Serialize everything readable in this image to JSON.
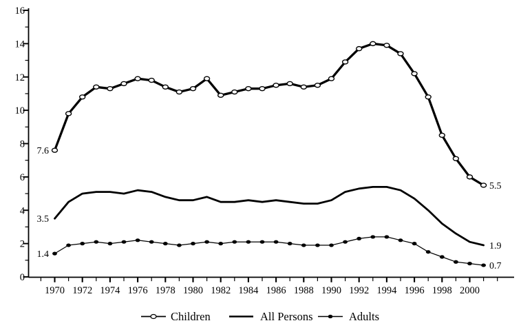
{
  "colors": {
    "ink": "#000000",
    "background": "#ffffff"
  },
  "chart_data": {
    "type": "line",
    "title": "",
    "xlabel": "",
    "ylabel": "",
    "x_years": [
      1970,
      1971,
      1972,
      1973,
      1974,
      1975,
      1976,
      1977,
      1978,
      1979,
      1980,
      1981,
      1982,
      1983,
      1984,
      1985,
      1986,
      1987,
      1988,
      1989,
      1990,
      1991,
      1992,
      1993,
      1994,
      1995,
      1996,
      1997,
      1998,
      1999,
      2000,
      2001
    ],
    "series": [
      {
        "name": "Children",
        "marker": "open-circle",
        "values": [
          7.6,
          9.8,
          10.8,
          11.4,
          11.3,
          11.6,
          11.9,
          11.8,
          11.4,
          11.1,
          11.3,
          11.9,
          10.9,
          11.1,
          11.3,
          11.3,
          11.5,
          11.6,
          11.4,
          11.5,
          11.9,
          12.9,
          13.7,
          14.0,
          13.9,
          13.4,
          12.2,
          10.8,
          8.5,
          7.1,
          6.0,
          5.5
        ]
      },
      {
        "name": "All Persons",
        "marker": "none",
        "values": [
          3.5,
          4.5,
          5.0,
          5.1,
          5.1,
          5.0,
          5.2,
          5.1,
          4.8,
          4.6,
          4.6,
          4.8,
          4.5,
          4.5,
          4.6,
          4.5,
          4.6,
          4.5,
          4.4,
          4.4,
          4.6,
          5.1,
          5.3,
          5.4,
          5.4,
          5.2,
          4.7,
          4.0,
          3.2,
          2.6,
          2.1,
          1.9
        ]
      },
      {
        "name": "Adults",
        "marker": "filled-circle",
        "values": [
          1.4,
          1.9,
          2.0,
          2.1,
          2.0,
          2.1,
          2.2,
          2.1,
          2.0,
          1.9,
          2.0,
          2.1,
          2.0,
          2.1,
          2.1,
          2.1,
          2.1,
          2.0,
          1.9,
          1.9,
          1.9,
          2.1,
          2.3,
          2.4,
          2.4,
          2.2,
          2.0,
          1.5,
          1.2,
          0.9,
          0.8,
          0.7
        ]
      }
    ],
    "ylim": [
      0,
      16
    ],
    "ytick_labels": [
      "0",
      "2",
      "4",
      "6",
      "8",
      "10",
      "12",
      "14",
      "16"
    ],
    "ytick_minor_values": [
      1,
      3,
      5,
      7,
      9,
      11,
      13,
      15
    ],
    "xtick_labels": [
      "1970",
      "1972",
      "1974",
      "1976",
      "1978",
      "1980",
      "1982",
      "1984",
      "1986",
      "1988",
      "1990",
      "1992",
      "1994",
      "1996",
      "1998",
      "2000"
    ],
    "xtick_minor_year_range": [
      1969,
      2002
    ],
    "grid": false,
    "legend_position": "bottom",
    "annotations": {
      "start_labels": [
        "7.6",
        "3.5",
        "1.4"
      ],
      "end_labels": [
        "5.5",
        "1.9",
        "0.7"
      ]
    }
  },
  "legend": {
    "items": [
      {
        "label": "Children",
        "marker": "open-circle"
      },
      {
        "label": "All Persons",
        "marker": "line"
      },
      {
        "label": "Adults",
        "marker": "filled-circle"
      }
    ]
  }
}
